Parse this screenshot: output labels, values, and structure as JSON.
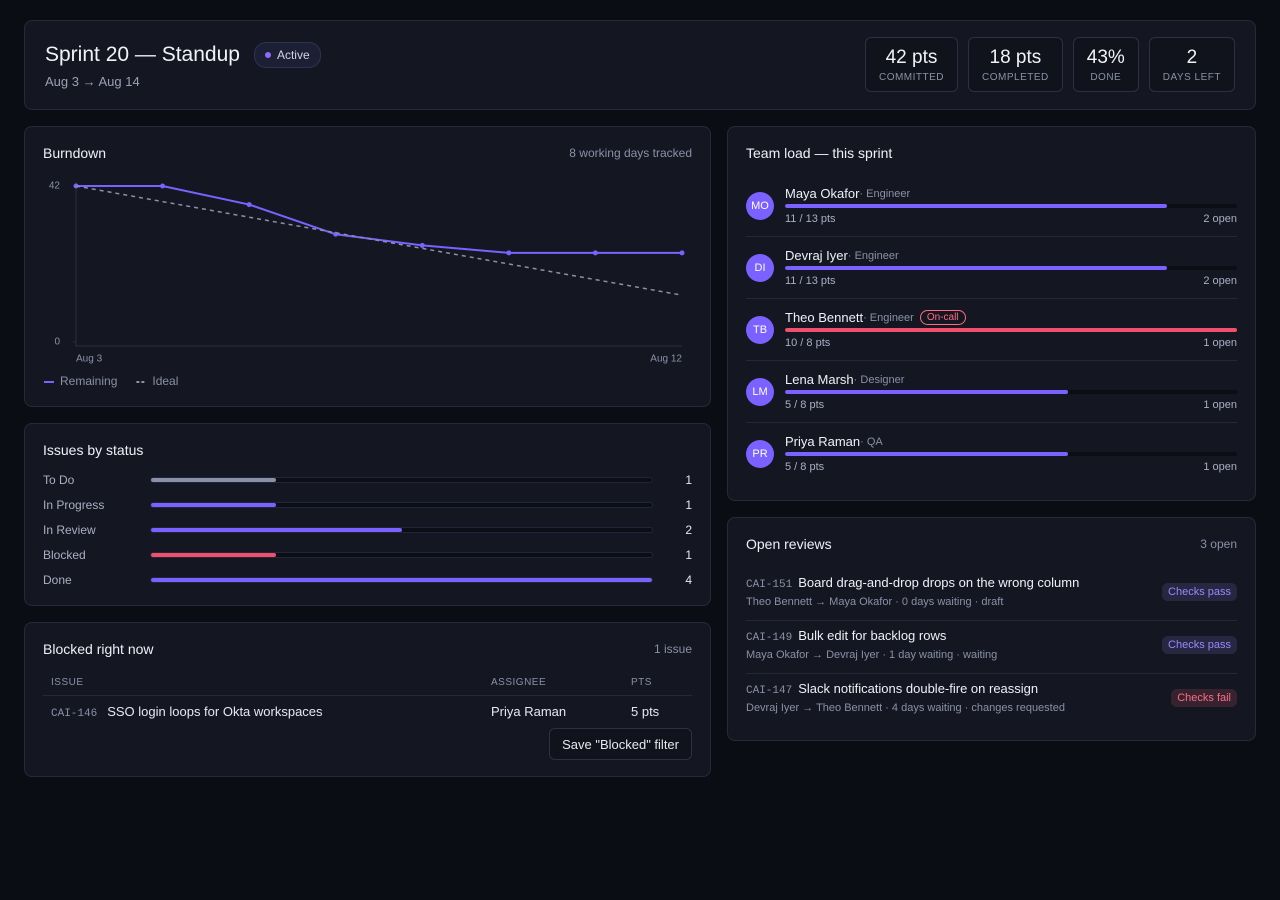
{
  "header": {
    "title": "Sprint 20 — Standup",
    "dates": "Aug 3 → Aug 14",
    "status": "Active",
    "stats": [
      {
        "value": "42 pts",
        "label": "COMMITTED"
      },
      {
        "value": "18 pts",
        "label": "COMPLETED"
      },
      {
        "value": "43%",
        "label": "DONE"
      },
      {
        "value": "2",
        "label": "DAYS LEFT"
      }
    ]
  },
  "chart_data": [
    {
      "type": "line",
      "title": "Burndown",
      "subtitle": "8 working days tracked",
      "categories": [
        "Aug 3",
        null,
        null,
        null,
        null,
        null,
        null,
        "Aug 12"
      ],
      "series": [
        {
          "name": "Remaining",
          "color": "#7b61ff",
          "style": "solid",
          "markers": true,
          "values": [
            42,
            42,
            37,
            29,
            26,
            24,
            24,
            24
          ]
        },
        {
          "name": "Ideal",
          "color": "#8c90a6",
          "style": "dashed",
          "markers": false,
          "values": [
            42,
            37.8,
            33.6,
            29.4,
            25.2,
            21,
            16.8,
            12.6
          ]
        }
      ],
      "ylim": [
        0,
        42
      ],
      "yticks": [
        0,
        42
      ],
      "legend": "bottom-left"
    },
    {
      "type": "bar",
      "title": "Issues by status",
      "categories": [
        "To Do",
        "In Progress",
        "In Review",
        "Blocked",
        "Done"
      ],
      "values": [
        1,
        1,
        2,
        1,
        4
      ],
      "colors": [
        "#8b90a8",
        "#7b61ff",
        "#7b61ff",
        "#f0506e",
        "#7b61ff"
      ],
      "xlim": [
        0,
        4
      ]
    }
  ],
  "team_load": {
    "title": "Team load — this sprint",
    "members": [
      {
        "initials": "MO",
        "name": "Maya Okafor",
        "role": "Engineer",
        "done": 11,
        "total": 13,
        "points_label": "11 / 13 pts",
        "open": "2 open",
        "color": "#7b61ff"
      },
      {
        "initials": "DI",
        "name": "Devraj Iyer",
        "role": "Engineer",
        "done": 11,
        "total": 13,
        "points_label": "11 / 13 pts",
        "open": "2 open",
        "color": "#7b61ff"
      },
      {
        "initials": "TB",
        "name": "Theo Bennett",
        "role": "Engineer",
        "badge": "On-call",
        "done": 10,
        "total": 8,
        "points_label": "10 / 8 pts",
        "open": "1 open",
        "color": "#f0506e"
      },
      {
        "initials": "LM",
        "name": "Lena Marsh",
        "role": "Designer",
        "done": 5,
        "total": 8,
        "points_label": "5 / 8 pts",
        "open": "1 open",
        "color": "#7b61ff"
      },
      {
        "initials": "PR",
        "name": "Priya Raman",
        "role": "QA",
        "done": 5,
        "total": 8,
        "points_label": "5 / 8 pts",
        "open": "1 open",
        "color": "#7b61ff"
      }
    ]
  },
  "open_reviews": {
    "title": "Open reviews",
    "count": "3 open",
    "items": [
      {
        "key": "CAI-151",
        "title": "Board drag-and-drop drops on the wrong column",
        "meta": "Theo Bennett → Maya Okafor · 0 days waiting · draft",
        "check": "Checks pass",
        "check_color": "#9b87ff"
      },
      {
        "key": "CAI-149",
        "title": "Bulk edit for backlog rows",
        "meta": "Maya Okafor → Devraj Iyer · 1 day waiting · waiting",
        "check": "Checks pass",
        "check_color": "#9b87ff"
      },
      {
        "key": "CAI-147",
        "title": "Slack notifications double-fire on reassign",
        "meta": "Devraj Iyer → Theo Bennett · 4 days waiting · changes requested",
        "check": "Checks fail",
        "check_color": "#ff6b81"
      }
    ]
  },
  "blocked": {
    "title": "Blocked right now",
    "count": "1 issue",
    "columns": [
      "ISSUE",
      "ASSIGNEE",
      "PTS"
    ],
    "rows": [
      {
        "key": "CAI-146",
        "title": "SSO login loops for Okta workspaces",
        "assignee": "Priya Raman",
        "points": "5 pts"
      }
    ],
    "button": "Save \"Blocked\" filter"
  }
}
